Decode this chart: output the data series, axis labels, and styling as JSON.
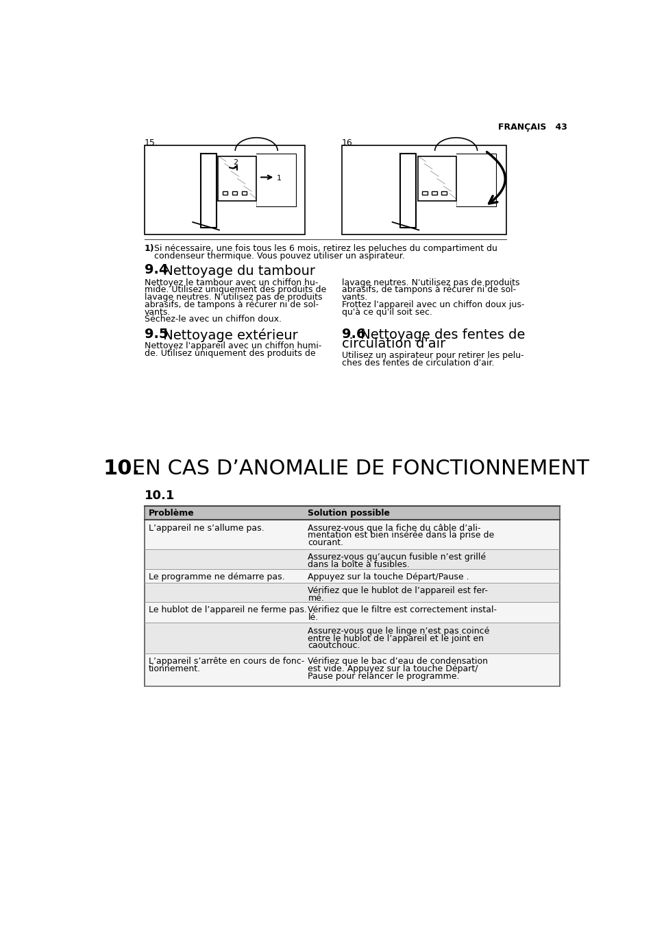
{
  "bg_color": "#ffffff",
  "page_header_right": "FRANÇAIS   43",
  "note_bold": "1)",
  "note_line1": "Si nécessaire, une fois tous les 6 mois, retirez les peluches du compartiment du",
  "note_line2": "condenseur thermique. Vous pouvez utiliser un aspirateur.",
  "s94_bold": "9.4",
  "s94_normal": " Nettoyage du tambour",
  "s94_left": [
    "Nettoyez le tambour avec un chiffon hu-",
    "mide. Utilisez uniquement des produits de",
    "lavage neutres. N'utilisez pas de produits",
    "abrasifs, de tampons à récurer ni de sol-",
    "vants.",
    "Séchez-le avec un chiffon doux."
  ],
  "s94_right": [
    "lavage neutres. N'utilisez pas de produits",
    "abrasifs, de tampons à récurer ni de sol-",
    "vants.",
    "Frottez l'appareil avec un chiffon doux jus-",
    "qu'à ce qu'il soit sec."
  ],
  "s95_bold": "9.5",
  "s95_normal": " Nettoyage extérieur",
  "s95_text": [
    "Nettoyez l'appareil avec un chiffon humi-",
    "de. Utilisez uniquement des produits de"
  ],
  "s96_bold": "9.6",
  "s96_normal": " Nettoyage des fentes de",
  "s96_normal2": "circulation d'air",
  "s96_text": [
    "Utilisez un aspirateur pour retirer les pelu-",
    "ches des fentes de circulation d'air."
  ],
  "s10_bold": "10.",
  "s10_normal": " EN CAS D’ANOMALIE DE FONCTIONNEMENT",
  "s101": "10.1",
  "th1": "Problème",
  "th2": "Solution possible",
  "rows": [
    [
      "L’appareil ne s’allume pas.",
      [
        "Assurez-vous que la fiche du câble d’ali-",
        "mentation est bien insérée dans la prise de",
        "courant."
      ],
      "white"
    ],
    [
      "",
      [
        "Assurez-vous qu’aucun fusible n’est grillé",
        "dans la boîte à fusibles."
      ],
      "#ebebeb"
    ],
    [
      "Le programme ne démarre pas.",
      [
        "Appuyez sur la touche Départ/Pause ."
      ],
      "white"
    ],
    [
      "",
      [
        "Vérifiez que le hublot de l’appareil est fer-",
        "mé."
      ],
      "#ebebeb"
    ],
    [
      "Le hublot de l’appareil ne ferme pas.",
      [
        "Vérifiez que le filtre est correctement instal-",
        "lé."
      ],
      "white"
    ],
    [
      "",
      [
        "Assurez-vous que le linge n’est pas coincé",
        "entre le hublot de l’appareil et le joint en",
        "caoutchouc."
      ],
      "#ebebeb"
    ],
    [
      "L’appareil s’arrête en cours de fonc-\ntionnement.",
      [
        "Vérifiez que le bac d’eau de condensation",
        "est vide. Appuyez sur la touche Départ/",
        "Pause pour relancer le programme."
      ],
      "white"
    ]
  ]
}
